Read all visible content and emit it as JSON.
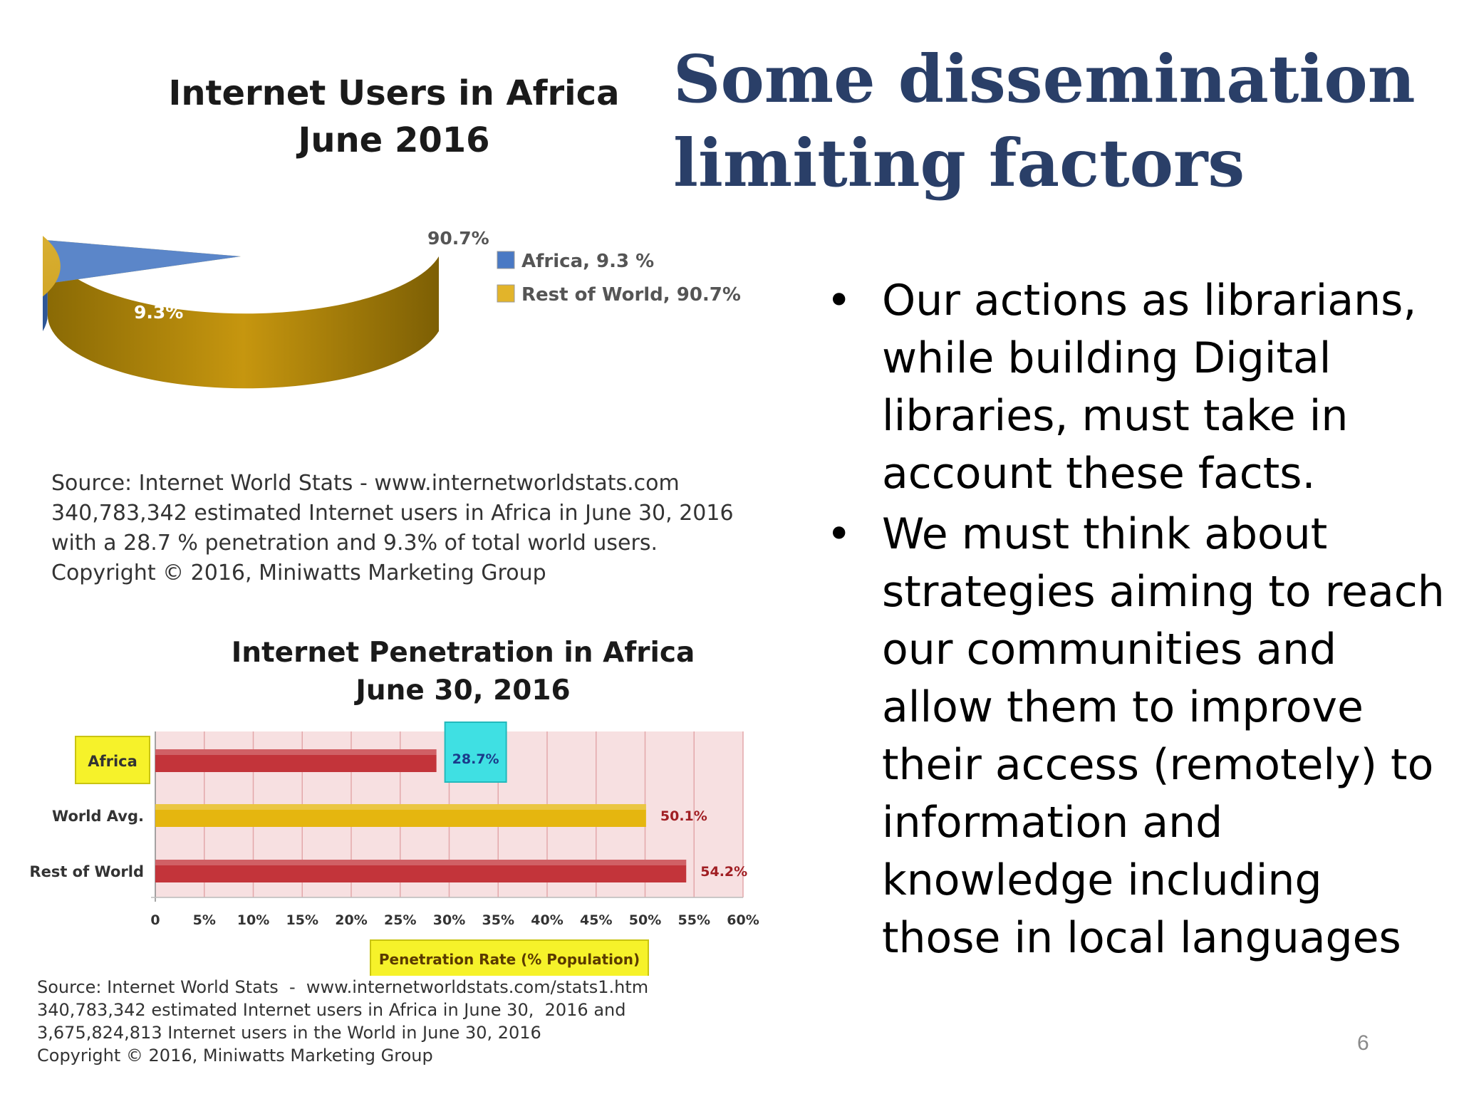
{
  "slide": {
    "title_line1": "Some dissemination",
    "title_line2": "limiting factors",
    "page_number": "6"
  },
  "bullets": [
    "Our actions as librarians, while building Digital libraries, must take in account these facts.",
    "We must think about strategies aiming to reach our communities and allow them to improve their access (remotely) to information and knowledge including those in local languages"
  ],
  "colors": {
    "title": "#2a3f68",
    "pie_africa": "#5b86c9",
    "pie_rest": "#d8ac2a",
    "bar_red": "#c0343a",
    "bar_gold": "#e2b40e",
    "highlight_yellow": "#f6f22a",
    "highlight_cyan": "#3fe0e3"
  },
  "chart_data": [
    {
      "type": "pie",
      "title_line1": "Internet Users in Africa",
      "title_line2": "June 2016",
      "slices": [
        {
          "name": "Africa",
          "value": 9.3,
          "label": "9.3%",
          "legend": "Africa, 9.3 %"
        },
        {
          "name": "Rest of World",
          "value": 90.7,
          "label": "90.7%",
          "legend": "Rest of World, 90.7%"
        }
      ],
      "legend_position": "right",
      "source_lines": [
        "Source: Internet World Stats - www.internetworldstats.com",
        "340,783,342 estimated Internet users in Africa in June 30, 2016",
        "with a 28.7 % penetration and 9.3% of total world users.",
        "Copyright © 2016, Miniwatts Marketing Group"
      ]
    },
    {
      "type": "bar",
      "orientation": "horizontal",
      "title_line1": "Internet Penetration in Africa",
      "title_line2": "June 30, 2016",
      "categories": [
        "Africa",
        "World Avg.",
        "Rest of World"
      ],
      "values": [
        28.7,
        50.1,
        54.2
      ],
      "value_labels": [
        "28.7%",
        "50.1%",
        "54.2%"
      ],
      "xlim": [
        0,
        60
      ],
      "x_ticks": [
        "0",
        "5%",
        "10%",
        "15%",
        "20%",
        "25%",
        "30%",
        "35%",
        "40%",
        "45%",
        "50%",
        "55%",
        "60%"
      ],
      "xlabel": "Penetration Rate (% Population)",
      "grid": true,
      "source_lines": [
        "Source: Internet World Stats  -  www.internetworldstats.com/stats1.htm",
        "340,783,342 estimated Internet users in Africa in June 30,  2016 and",
        "3,675,824,813 Internet users in the World in June 30, 2016",
        "Copyright © 2016, Miniwatts Marketing Group"
      ]
    }
  ]
}
